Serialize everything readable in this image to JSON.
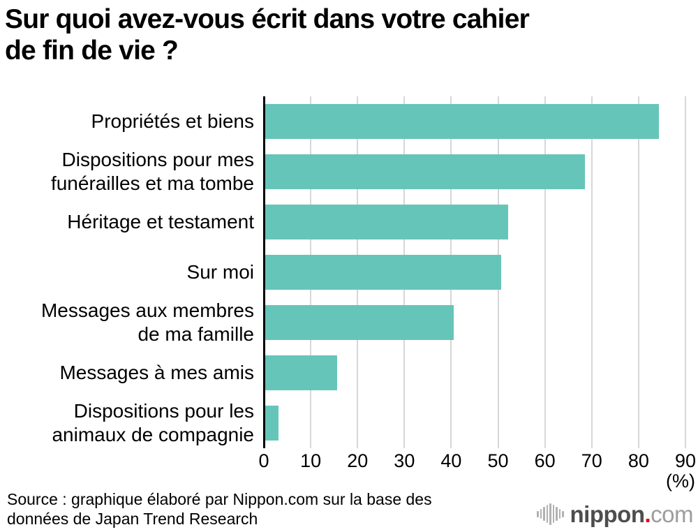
{
  "title": {
    "line1": "Sur quoi avez-vous écrit dans votre cahier",
    "line2": "de fin de vie ?"
  },
  "chart_data": {
    "type": "bar",
    "orientation": "horizontal",
    "title": "Sur quoi avez-vous écrit dans votre cahier de fin de vie ?",
    "categories": [
      "Propriétés et biens",
      "Dispositions pour mes funérailles et ma tombe",
      "Héritage et testament",
      "Sur moi",
      "Messages aux membres de ma famille",
      "Messages à mes amis",
      "Dispositions pour les animaux de compagnie"
    ],
    "category_lines": [
      [
        "Propriétés et biens"
      ],
      [
        "Dispositions pour mes",
        "funérailles et ma tombe"
      ],
      [
        "Héritage et testament"
      ],
      [
        "Sur moi"
      ],
      [
        "Messages aux membres",
        "de ma famille"
      ],
      [
        "Messages à mes amis"
      ],
      [
        "Dispositions pour les",
        "animaux de compagnie"
      ]
    ],
    "values": [
      84.3,
      68.5,
      52.2,
      50.6,
      40.5,
      15.6,
      3.1
    ],
    "xlim": [
      0,
      90
    ],
    "xticks": [
      0,
      10,
      20,
      30,
      40,
      50,
      60,
      70,
      80,
      90
    ],
    "xlabel": "(%)",
    "grid": true,
    "bar_color": "#66c5b9",
    "gridline_color": "#d7d7d7",
    "axis_color": "#000000"
  },
  "source": {
    "line1": "Source : graphique élaboré par Nippon.com sur la base des",
    "line2": "données de Japan Trend Research"
  },
  "logo": {
    "icon": "waveform-icon",
    "name": "nippon",
    "dot": ".",
    "tld": "com",
    "colors": {
      "name": "#4d4d4d",
      "dot": "#e60012",
      "tld": "#9c9c9c",
      "icon": "#b1b1b1"
    }
  }
}
